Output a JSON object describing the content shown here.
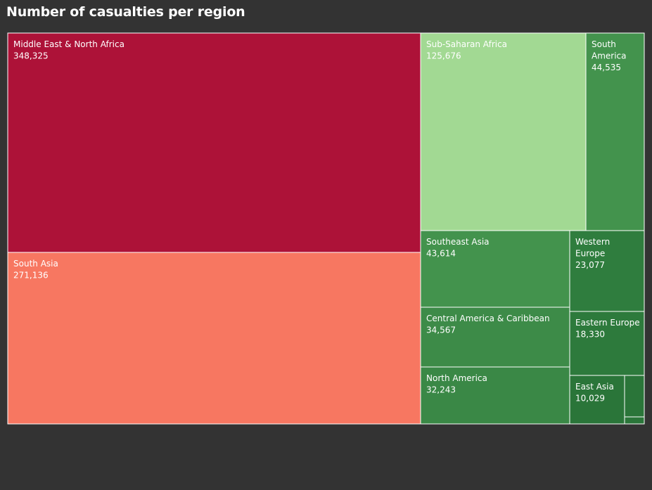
{
  "chart_data": {
    "type": "treemap",
    "title": "Number of casualties per region",
    "items": [
      {
        "name": "Middle East & North Africa",
        "value": 348325,
        "label": "348,325",
        "color": "#ad1238"
      },
      {
        "name": "South Asia",
        "value": 271136,
        "label": "271,136",
        "color": "#f77761"
      },
      {
        "name": "Sub-Saharan Africa",
        "value": 125676,
        "label": "125,676",
        "color": "#a2d993"
      },
      {
        "name": "South America",
        "value": 44535,
        "label": "44,535",
        "color": "#43934d"
      },
      {
        "name": "Southeast Asia",
        "value": 43614,
        "label": "43,614",
        "color": "#43934d"
      },
      {
        "name": "Central America & Caribbean",
        "value": 34567,
        "label": "34,567",
        "color": "#3d8b48"
      },
      {
        "name": "North America",
        "value": 32243,
        "label": "32,243",
        "color": "#3a8846"
      },
      {
        "name": "Western Europe",
        "value": 23077,
        "label": "23,077",
        "color": "#2f7d3e"
      },
      {
        "name": "Eastern Europe",
        "value": 18330,
        "label": "18,330",
        "color": "#2d7a3c"
      },
      {
        "name": "East Asia",
        "value": 10029,
        "label": "10,029",
        "color": "#2a7539"
      },
      {
        "name": "",
        "value": null,
        "label": "",
        "color": "#2a7539"
      },
      {
        "name": "",
        "value": null,
        "label": "",
        "color": "#2a7539"
      }
    ]
  }
}
